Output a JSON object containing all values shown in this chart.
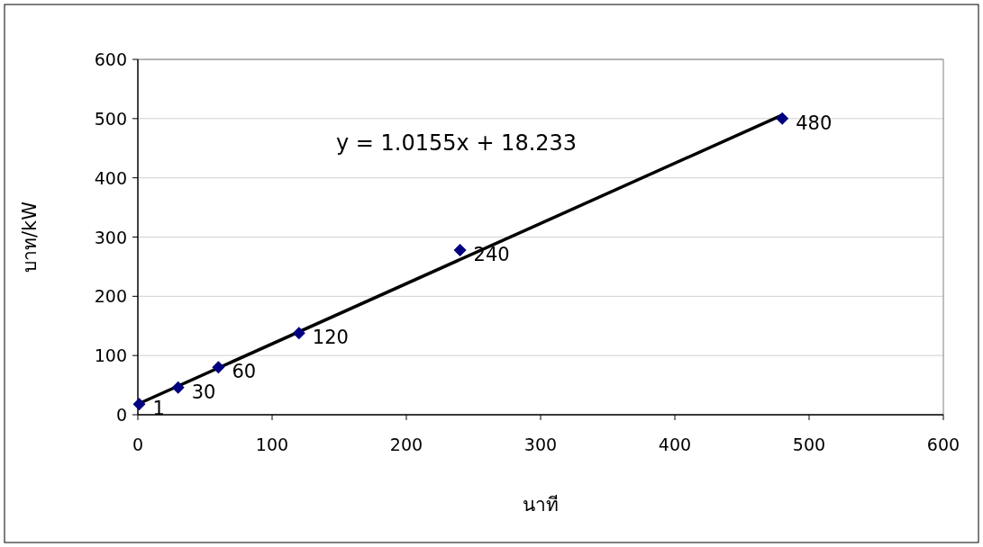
{
  "chart_data": {
    "type": "scatter",
    "xlabel": "นาที",
    "ylabel": "บาท/kW",
    "xlim": [
      0,
      600
    ],
    "xticks": [
      0,
      100,
      200,
      300,
      400,
      500,
      600
    ],
    "ylim": [
      0,
      600
    ],
    "yticks": [
      0,
      100,
      200,
      300,
      400,
      500,
      600
    ],
    "grid": "y",
    "series": [
      {
        "type": "scatter",
        "color": "#000080",
        "marker": "diamond",
        "x": [
          1,
          30,
          60,
          120,
          240,
          480
        ],
        "values": [
          18,
          46,
          80,
          138,
          278,
          500
        ]
      },
      {
        "type": "line",
        "color": "#000000",
        "line_style": "solid",
        "x": [
          1,
          480
        ],
        "values": [
          19,
          506
        ]
      }
    ],
    "annotations": [
      "y = 1.0155x + 18.233",
      {
        "text": "1",
        "x": 1,
        "y": 18
      },
      {
        "text": "30",
        "x": 30,
        "y": 46
      },
      {
        "text": "60",
        "x": 60,
        "y": 80
      },
      {
        "text": "120",
        "x": 120,
        "y": 138
      },
      {
        "text": "240",
        "x": 240,
        "y": 278
      },
      {
        "text": "480",
        "x": 480,
        "y": 500
      }
    ]
  }
}
